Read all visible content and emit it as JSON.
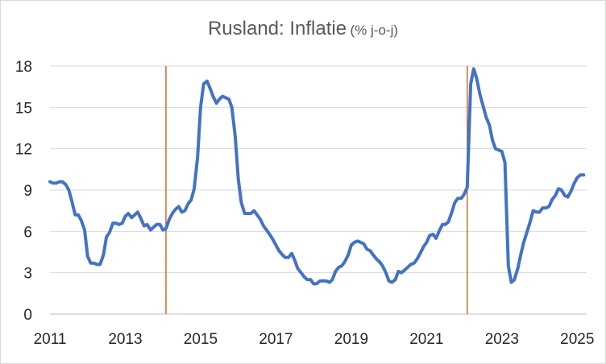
{
  "chart_data": {
    "type": "line",
    "title": "Rusland: Inflatie",
    "subtitle": "(% j-o-j)",
    "xlabel": "",
    "ylabel": "",
    "ylim": [
      0,
      18
    ],
    "xlim": [
      2011.0,
      2025.25
    ],
    "y_ticks": [
      0,
      3,
      6,
      9,
      12,
      15,
      18
    ],
    "x_ticks": [
      "2011",
      "2013",
      "2015",
      "2017",
      "2019",
      "2021",
      "2023",
      "2025"
    ],
    "grid": "horizontal",
    "legend": "none",
    "colors": {
      "series": "#4472c4",
      "marker_lines": "#c55a11",
      "grid": "#d9d9d9",
      "text": "#595959"
    },
    "vertical_lines_x": [
      2014.08,
      2022.08
    ],
    "series": [
      {
        "x": [
          2011.0,
          2011.08,
          2011.17,
          2011.25,
          2011.33,
          2011.42,
          2011.5,
          2011.58,
          2011.67,
          2011.75,
          2011.83,
          2011.92,
          2012.0,
          2012.08,
          2012.17,
          2012.25,
          2012.33,
          2012.42,
          2012.5,
          2012.58,
          2012.67,
          2012.75,
          2012.83,
          2012.92,
          2013.0,
          2013.08,
          2013.17,
          2013.25,
          2013.33,
          2013.42,
          2013.5,
          2013.58,
          2013.67,
          2013.75,
          2013.83,
          2013.92,
          2014.0,
          2014.08,
          2014.17,
          2014.25,
          2014.33,
          2014.42,
          2014.5,
          2014.58,
          2014.67,
          2014.75,
          2014.83,
          2014.92,
          2015.0,
          2015.08,
          2015.17,
          2015.25,
          2015.33,
          2015.42,
          2015.5,
          2015.58,
          2015.67,
          2015.75,
          2015.83,
          2015.92,
          2016.0,
          2016.08,
          2016.17,
          2016.25,
          2016.33,
          2016.42,
          2016.5,
          2016.58,
          2016.67,
          2016.75,
          2016.83,
          2016.92,
          2017.0,
          2017.08,
          2017.17,
          2017.25,
          2017.33,
          2017.42,
          2017.5,
          2017.58,
          2017.67,
          2017.75,
          2017.83,
          2017.92,
          2018.0,
          2018.08,
          2018.17,
          2018.25,
          2018.33,
          2018.42,
          2018.5,
          2018.58,
          2018.67,
          2018.75,
          2018.83,
          2018.92,
          2019.0,
          2019.08,
          2019.17,
          2019.25,
          2019.33,
          2019.42,
          2019.5,
          2019.58,
          2019.67,
          2019.75,
          2019.83,
          2019.92,
          2020.0,
          2020.08,
          2020.17,
          2020.25,
          2020.33,
          2020.42,
          2020.5,
          2020.58,
          2020.67,
          2020.75,
          2020.83,
          2020.92,
          2021.0,
          2021.08,
          2021.17,
          2021.25,
          2021.33,
          2021.42,
          2021.5,
          2021.58,
          2021.67,
          2021.75,
          2021.83,
          2021.92,
          2022.0,
          2022.08,
          2022.17,
          2022.25,
          2022.33,
          2022.42,
          2022.5,
          2022.58,
          2022.67,
          2022.75,
          2022.83,
          2022.92,
          2023.0,
          2023.08,
          2023.17,
          2023.25,
          2023.33,
          2023.42,
          2023.5,
          2023.58,
          2023.67,
          2023.75,
          2023.83,
          2023.92,
          2024.0,
          2024.08,
          2024.17,
          2024.25,
          2024.33,
          2024.42,
          2024.5,
          2024.58,
          2024.67,
          2024.75,
          2024.83,
          2024.92,
          2025.0,
          2025.08,
          2025.17
        ],
        "values": [
          9.6,
          9.5,
          9.5,
          9.6,
          9.6,
          9.4,
          9.0,
          8.2,
          7.2,
          7.2,
          6.8,
          6.1,
          4.2,
          3.7,
          3.7,
          3.6,
          3.6,
          4.3,
          5.6,
          5.9,
          6.6,
          6.6,
          6.5,
          6.6,
          7.1,
          7.3,
          7.0,
          7.2,
          7.4,
          6.9,
          6.4,
          6.5,
          6.1,
          6.3,
          6.5,
          6.5,
          6.1,
          6.2,
          6.9,
          7.3,
          7.6,
          7.8,
          7.4,
          7.5,
          8.0,
          8.3,
          9.1,
          11.4,
          15.0,
          16.7,
          16.9,
          16.4,
          15.8,
          15.3,
          15.6,
          15.8,
          15.7,
          15.6,
          15.0,
          12.9,
          9.8,
          8.1,
          7.3,
          7.3,
          7.3,
          7.5,
          7.2,
          6.9,
          6.4,
          6.1,
          5.8,
          5.4,
          5.0,
          4.6,
          4.3,
          4.1,
          4.1,
          4.4,
          3.9,
          3.3,
          3.0,
          2.7,
          2.5,
          2.5,
          2.2,
          2.2,
          2.4,
          2.4,
          2.4,
          2.3,
          2.5,
          3.1,
          3.4,
          3.5,
          3.8,
          4.3,
          5.0,
          5.2,
          5.3,
          5.2,
          5.1,
          4.7,
          4.6,
          4.3,
          4.0,
          3.8,
          3.5,
          3.0,
          2.4,
          2.3,
          2.5,
          3.1,
          3.0,
          3.2,
          3.4,
          3.6,
          3.7,
          4.0,
          4.4,
          4.9,
          5.2,
          5.7,
          5.8,
          5.5,
          6.0,
          6.5,
          6.5,
          6.7,
          7.4,
          8.1,
          8.4,
          8.4,
          8.7,
          9.2,
          16.7,
          17.8,
          17.1,
          15.9,
          15.1,
          14.3,
          13.7,
          12.6,
          12.0,
          11.9,
          11.8,
          11.0,
          3.5,
          2.3,
          2.5,
          3.3,
          4.3,
          5.2,
          6.0,
          6.7,
          7.5,
          7.4,
          7.4,
          7.7,
          7.7,
          7.8,
          8.3,
          8.6,
          9.1,
          9.0,
          8.6,
          8.5,
          8.9,
          9.5,
          9.9,
          10.1,
          10.1
        ]
      }
    ]
  }
}
